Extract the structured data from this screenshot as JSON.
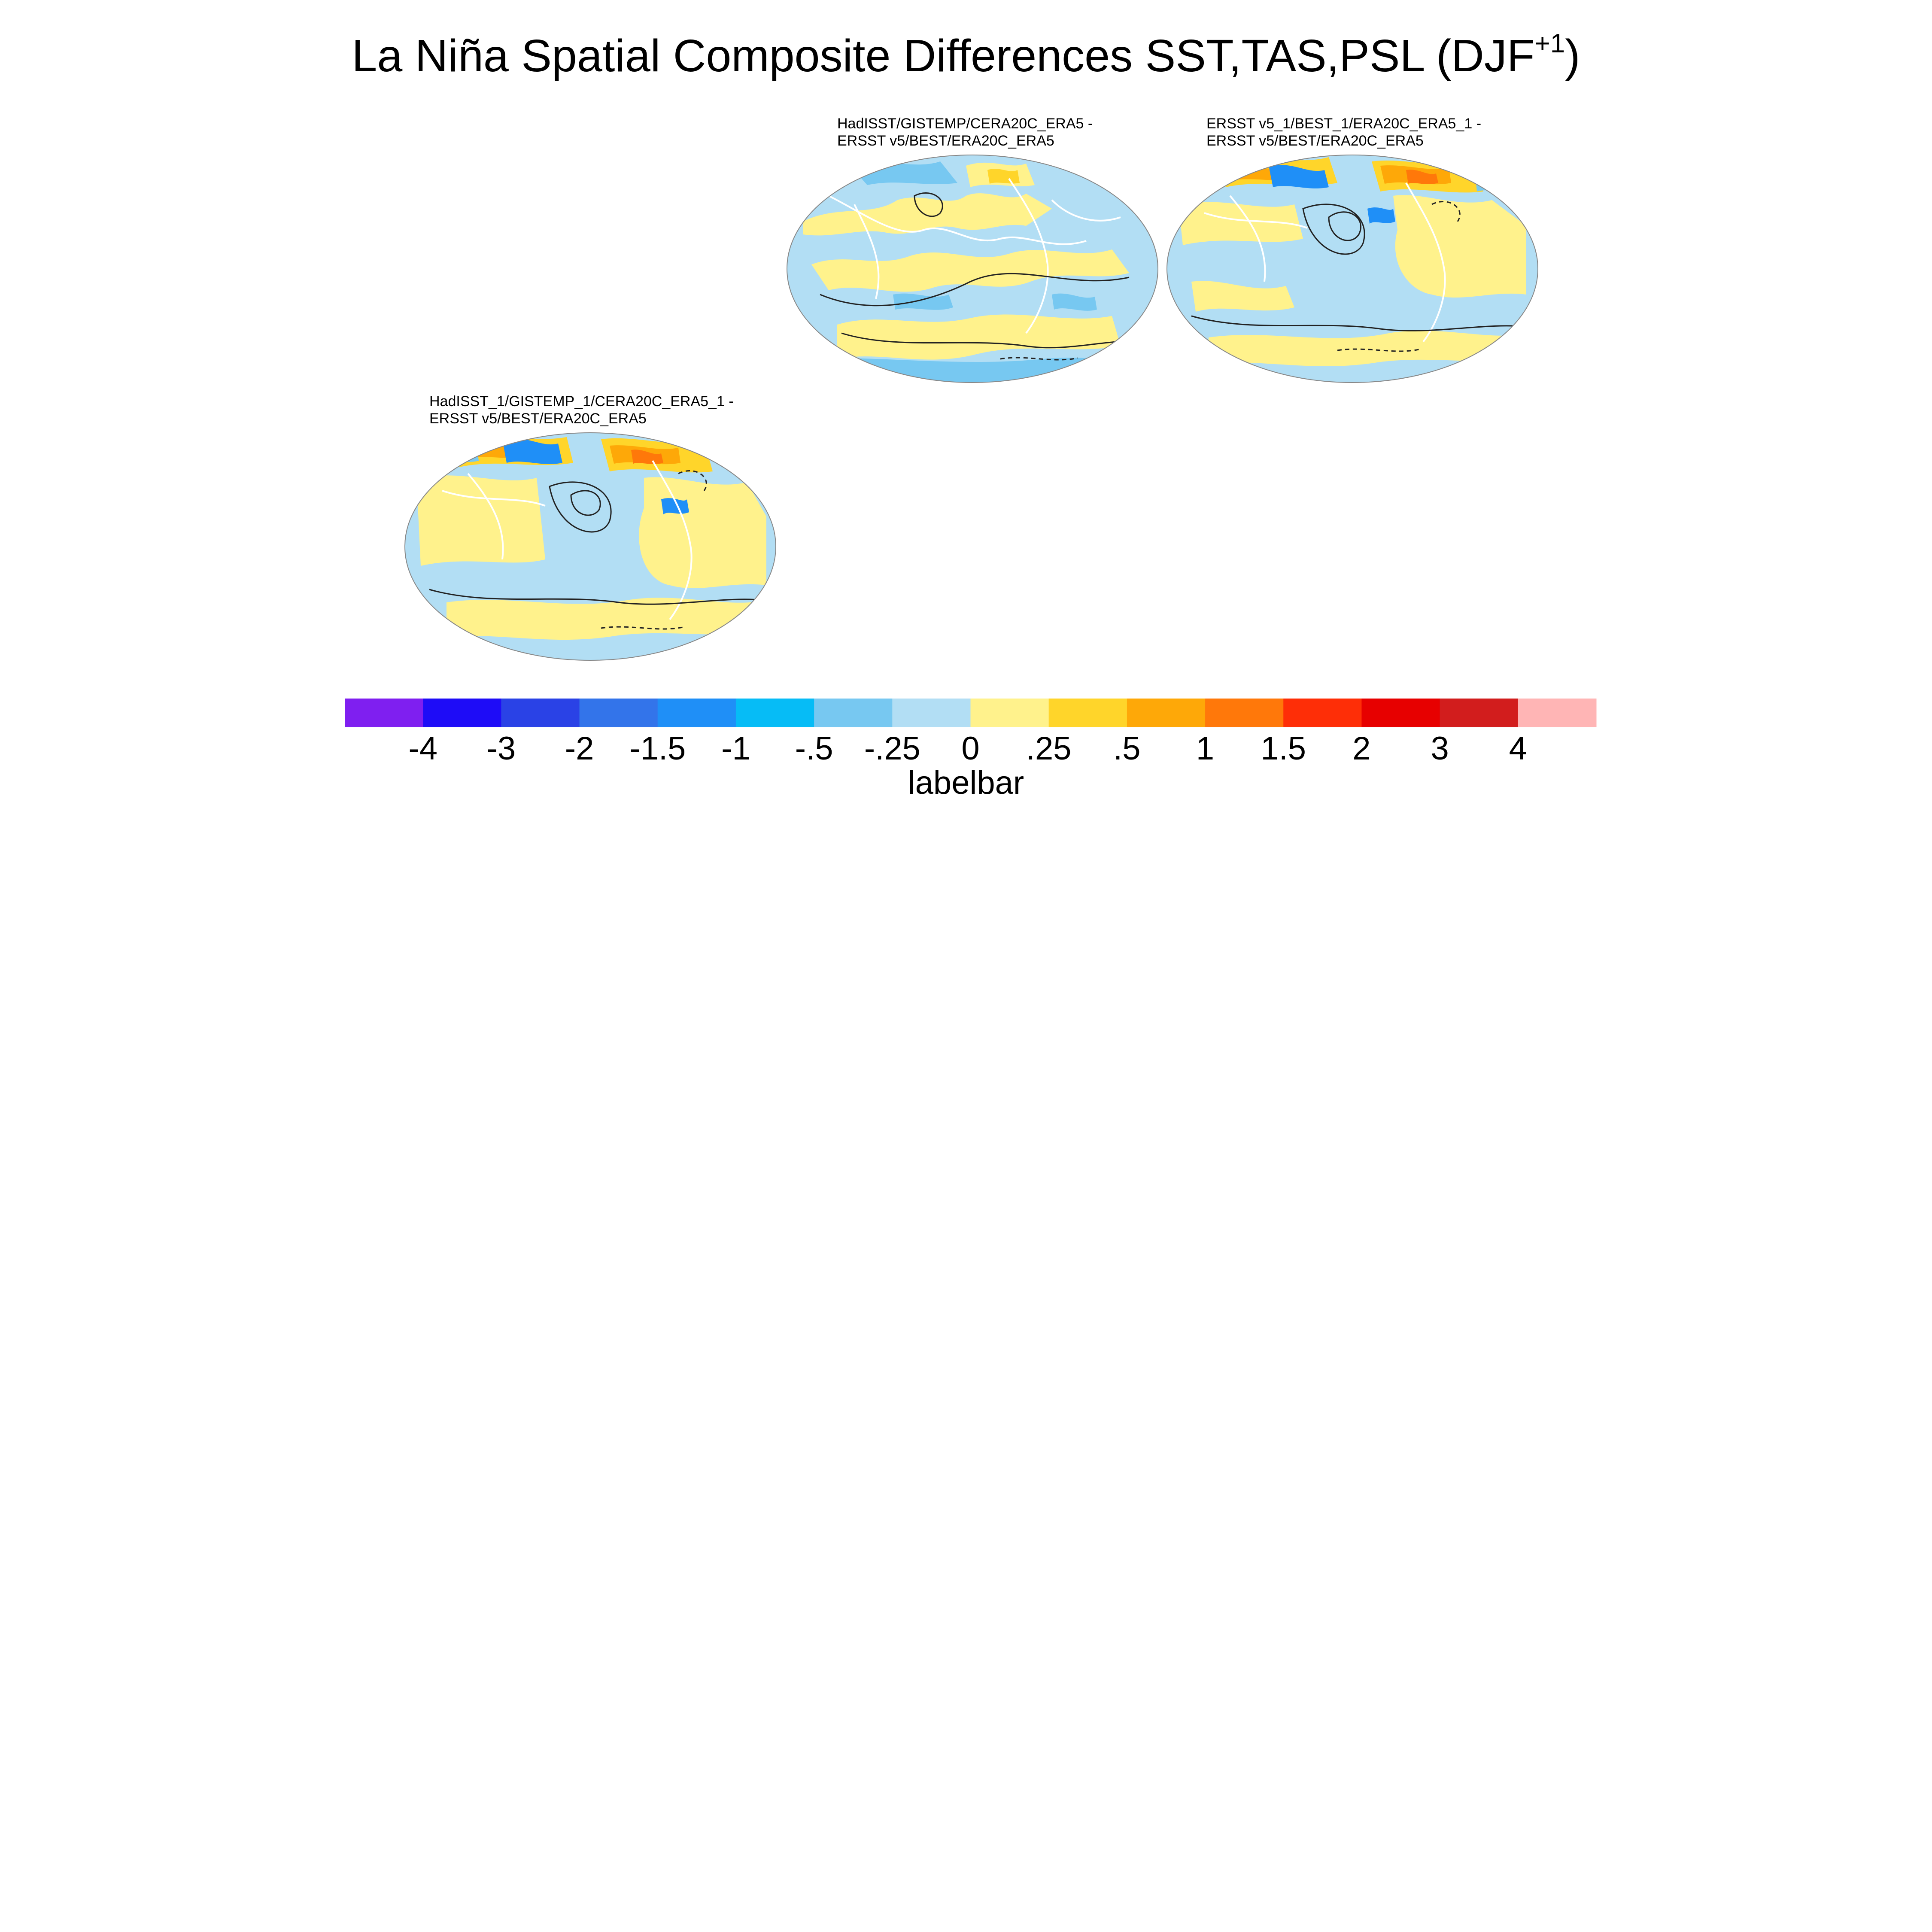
{
  "title": {
    "main": "La Niña Spatial Composite Differences SST,TAS,PSL (DJF",
    "superscript": "+1",
    "close": ")"
  },
  "panels": [
    {
      "id": "p1",
      "line1": "HadISST/GISTEMP/CERA20C_ERA5 -",
      "line2": "ERSST v5/BEST/ERA20C_ERA5"
    },
    {
      "id": "p2",
      "line1": "ERSST v5_1/BEST_1/ERA20C_ERA5_1 -",
      "line2": "ERSST v5/BEST/ERA20C_ERA5"
    },
    {
      "id": "p3",
      "line1": "HadISST_1/GISTEMP_1/CERA20C_ERA5_1 -",
      "line2": "ERSST v5/BEST/ERA20C_ERA5"
    }
  ],
  "labelbar": {
    "title": "labelbar",
    "colors": [
      "#7f1ff0",
      "#1e0cf7",
      "#2a42e6",
      "#3374ea",
      "#1f8ff7",
      "#06bcf6",
      "#77c8f1",
      "#b2def4",
      "#fff28c",
      "#ffd52a",
      "#fea808",
      "#ff780a",
      "#fe2e07",
      "#e70000",
      "#d21d1d",
      "#ffb5b5"
    ],
    "labels": [
      "-4",
      "-3",
      "-2",
      "-1.5",
      "-1",
      "-.5",
      "-.25",
      "0",
      ".25",
      ".5",
      "1",
      "1.5",
      "2",
      "3",
      "4"
    ]
  }
}
